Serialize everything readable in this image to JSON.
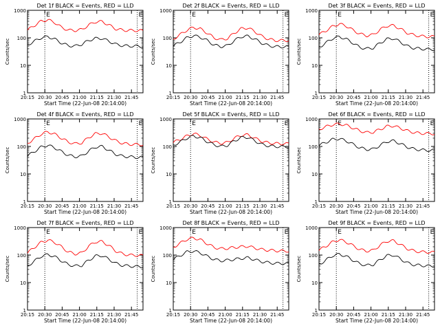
{
  "chart_data": [
    {
      "type": "line",
      "title": "Det 1f BLACK = Events, RED = LLD",
      "corner_labels": [
        "E",
        "E"
      ],
      "xlabel": "Start Time (22-Jun-08 20:14:00)",
      "ylabel": "Counts/sec",
      "y_scale": "log",
      "ylim": [
        1,
        1000
      ],
      "y_ticks": [
        "1",
        "10",
        "100",
        "1000"
      ],
      "x_ticks": [
        "20:15",
        "20:30",
        "20:45",
        "21:00",
        "21:15",
        "21:30",
        "21:45"
      ],
      "vlines_min": [
        30,
        110
      ],
      "series": [
        {
          "color": "#ff0000",
          "values": [
            190,
            280,
            400,
            450,
            360,
            240,
            190,
            185,
            200,
            290,
            380,
            390,
            290,
            210,
            190,
            185,
            185,
            180
          ]
        },
        {
          "color": "#000000",
          "values": [
            55,
            75,
            100,
            110,
            90,
            65,
            52,
            50,
            58,
            80,
            95,
            95,
            75,
            58,
            52,
            50,
            50,
            48
          ]
        }
      ]
    },
    {
      "type": "line",
      "title": "Det 2f BLACK = Events, RED = LLD",
      "corner_labels": [
        "E",
        "E"
      ],
      "xlabel": "Start Time (22-Jun-08 20:14:00)",
      "ylabel": "Counts/sec",
      "y_scale": "log",
      "ylim": [
        1,
        1000
      ],
      "y_ticks": [
        "1",
        "10",
        "100",
        "1000"
      ],
      "x_ticks": [
        "20:15",
        "20:30",
        "20:45",
        "21:00",
        "21:15",
        "21:30",
        "21:45"
      ],
      "vlines_min": [
        30,
        110
      ],
      "series": [
        {
          "color": "#ff0000",
          "values": [
            90,
            130,
            190,
            240,
            210,
            150,
            100,
            85,
            95,
            150,
            215,
            230,
            170,
            115,
            90,
            80,
            80,
            80
          ]
        },
        {
          "color": "#000000",
          "values": [
            50,
            70,
            100,
            120,
            105,
            80,
            55,
            48,
            52,
            80,
            110,
            115,
            90,
            65,
            52,
            48,
            47,
            47
          ]
        }
      ]
    },
    {
      "type": "line",
      "title": "Det 3f BLACK = Events, RED = LLD",
      "corner_labels": [
        "E",
        "E"
      ],
      "xlabel": "Start Time (22-Jun-08 20:14:00)",
      "ylabel": "Counts/sec",
      "y_scale": "log",
      "ylim": [
        1,
        1000
      ],
      "y_ticks": [
        "1",
        "10",
        "100",
        "1000"
      ],
      "x_ticks": [
        "20:15",
        "20:30",
        "20:45",
        "21:00",
        "21:15",
        "21:30",
        "21:45"
      ],
      "vlines_min": [
        30,
        110
      ],
      "series": [
        {
          "color": "#ff0000",
          "values": [
            130,
            180,
            260,
            320,
            270,
            190,
            140,
            120,
            130,
            200,
            270,
            280,
            210,
            150,
            125,
            115,
            110,
            110
          ]
        },
        {
          "color": "#000000",
          "values": [
            45,
            65,
            95,
            110,
            90,
            65,
            45,
            40,
            43,
            65,
            90,
            95,
            70,
            50,
            42,
            40,
            38,
            38
          ]
        }
      ]
    },
    {
      "type": "line",
      "title": "Det 4f BLACK = Events, RED = LLD",
      "corner_labels": [
        "E",
        "E"
      ],
      "xlabel": "Start Time (22-Jun-08 20:14:00)",
      "ylabel": "Counts/sec",
      "y_scale": "log",
      "ylim": [
        1,
        1000
      ],
      "y_ticks": [
        "1",
        "10",
        "100",
        "1000"
      ],
      "x_ticks": [
        "20:15",
        "20:30",
        "20:45",
        "21:00",
        "21:15",
        "21:30",
        "21:45"
      ],
      "vlines_min": [
        30,
        110
      ],
      "series": [
        {
          "color": "#ff0000",
          "values": [
            130,
            190,
            280,
            340,
            280,
            200,
            145,
            125,
            135,
            210,
            290,
            300,
            220,
            160,
            130,
            120,
            118,
            115
          ]
        },
        {
          "color": "#000000",
          "values": [
            45,
            65,
            95,
            110,
            90,
            65,
            48,
            42,
            45,
            68,
            95,
            100,
            72,
            52,
            44,
            42,
            40,
            40
          ]
        }
      ]
    },
    {
      "type": "line",
      "title": "Det 5f BLACK = Events, RED = LLD",
      "corner_labels": [
        "E",
        "E"
      ],
      "xlabel": "Start Time (22-Jun-08 20:14:00)",
      "ylabel": "Counts/sec",
      "y_scale": "log",
      "ylim": [
        1,
        1000
      ],
      "y_ticks": [
        "1",
        "10",
        "100",
        "1000"
      ],
      "x_ticks": [
        "20:15",
        "20:30",
        "20:45",
        "21:00",
        "21:15",
        "21:30",
        "21:45"
      ],
      "vlines_min": [
        30,
        110
      ],
      "series": [
        {
          "color": "#ff0000",
          "values": [
            140,
            180,
            240,
            290,
            250,
            185,
            145,
            130,
            140,
            200,
            255,
            265,
            200,
            155,
            135,
            128,
            125,
            125
          ]
        },
        {
          "color": "#000000",
          "values": [
            110,
            145,
            200,
            240,
            205,
            150,
            115,
            100,
            110,
            160,
            210,
            215,
            160,
            120,
            105,
            100,
            98,
            97
          ]
        }
      ]
    },
    {
      "type": "line",
      "title": "Det 6f BLACK = Events, RED = LLD",
      "corner_labels": [
        "E",
        "E"
      ],
      "xlabel": "Start Time (22-Jun-08 20:14:00)",
      "ylabel": "Counts/sec",
      "y_scale": "log",
      "ylim": [
        1,
        1000
      ],
      "y_ticks": [
        "1",
        "10",
        "100",
        "1000"
      ],
      "x_ticks": [
        "20:15",
        "20:30",
        "20:45",
        "21:00",
        "21:15",
        "21:30",
        "21:45"
      ],
      "vlines_min": [
        30,
        110
      ],
      "series": [
        {
          "color": "#ff0000",
          "values": [
            420,
            520,
            620,
            660,
            590,
            470,
            370,
            320,
            330,
            420,
            540,
            560,
            460,
            370,
            320,
            300,
            295,
            290
          ]
        },
        {
          "color": "#000000",
          "values": [
            110,
            140,
            180,
            190,
            160,
            120,
            90,
            78,
            80,
            110,
            150,
            160,
            125,
            95,
            80,
            75,
            72,
            72
          ]
        }
      ]
    },
    {
      "type": "line",
      "title": "Det 7f BLACK = Events, RED = LLD",
      "corner_labels": [
        "E",
        "E"
      ],
      "xlabel": "Start Time (22-Jun-08 20:14:00)",
      "ylabel": "Counts/sec",
      "y_scale": "log",
      "ylim": [
        1,
        1000
      ],
      "y_ticks": [
        "1",
        "10",
        "100",
        "1000"
      ],
      "x_ticks": [
        "20:15",
        "20:30",
        "20:45",
        "21:00",
        "21:15",
        "21:30",
        "21:45"
      ],
      "vlines_min": [
        30,
        110
      ],
      "series": [
        {
          "color": "#ff0000",
          "values": [
            120,
            190,
            290,
            350,
            290,
            200,
            130,
            110,
            120,
            210,
            300,
            310,
            220,
            140,
            110,
            100,
            98,
            95
          ]
        },
        {
          "color": "#000000",
          "values": [
            40,
            60,
            90,
            105,
            88,
            62,
            45,
            40,
            42,
            65,
            92,
            95,
            70,
            50,
            42,
            40,
            38,
            38
          ]
        }
      ]
    },
    {
      "type": "line",
      "title": "Det 8f BLACK = Events, RED = LLD",
      "corner_labels": [
        "E",
        "E"
      ],
      "xlabel": "Start Time (22-Jun-08 20:14:00)",
      "ylabel": "Counts/sec",
      "y_scale": "log",
      "ylim": [
        1,
        1000
      ],
      "y_ticks": [
        "1",
        "10",
        "100",
        "1000"
      ],
      "x_ticks": [
        "20:15",
        "20:30",
        "20:45",
        "21:00",
        "21:15",
        "21:30",
        "21:45"
      ],
      "vlines_min": [
        30,
        110
      ],
      "series": [
        {
          "color": "#ff0000",
          "values": [
            190,
            270,
            370,
            420,
            360,
            260,
            190,
            170,
            175,
            190,
            200,
            210,
            180,
            160,
            150,
            145,
            140,
            140
          ]
        },
        {
          "color": "#000000",
          "values": [
            70,
            95,
            130,
            140,
            120,
            90,
            70,
            62,
            65,
            70,
            75,
            80,
            68,
            58,
            53,
            50,
            50,
            49
          ]
        }
      ]
    },
    {
      "type": "line",
      "title": "Det 9f BLACK = Events, RED = LLD",
      "corner_labels": [
        "E",
        "E"
      ],
      "xlabel": "Start Time (22-Jun-08 20:14:00)",
      "ylabel": "Counts/sec",
      "y_scale": "log",
      "ylim": [
        1,
        1000
      ],
      "y_ticks": [
        "1",
        "10",
        "100",
        "1000"
      ],
      "x_ticks": [
        "20:15",
        "20:30",
        "20:45",
        "21:00",
        "21:15",
        "21:30",
        "21:45"
      ],
      "vlines_min": [
        30,
        110
      ],
      "series": [
        {
          "color": "#ff0000",
          "values": [
            150,
            210,
            300,
            360,
            300,
            220,
            160,
            140,
            150,
            230,
            320,
            330,
            240,
            170,
            140,
            130,
            128,
            125
          ]
        },
        {
          "color": "#000000",
          "values": [
            45,
            65,
            95,
            108,
            90,
            65,
            48,
            42,
            45,
            68,
            95,
            100,
            72,
            52,
            44,
            42,
            40,
            40
          ]
        }
      ]
    }
  ]
}
